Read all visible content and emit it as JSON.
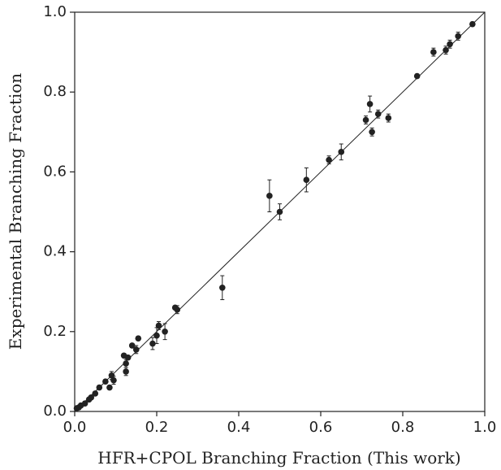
{
  "chart_data": {
    "type": "scatter",
    "xlabel": "HFR+CPOL Branching Fraction (This work)",
    "ylabel": "Experimental Branching Fraction",
    "x": [
      0.97,
      0.935,
      0.915,
      0.905,
      0.875,
      0.835,
      0.765,
      0.74,
      0.72,
      0.725,
      0.71,
      0.65,
      0.62,
      0.565,
      0.5,
      0.475,
      0.36,
      0.25,
      0.245,
      0.22,
      0.205,
      0.2,
      0.19,
      0.155,
      0.15,
      0.14,
      0.13,
      0.12,
      0.125,
      0.125,
      0.09,
      0.095,
      0.085,
      0.075,
      0.06,
      0.05,
      0.04,
      0.035,
      0.025,
      0.015,
      0.01,
      0.005
    ],
    "values": [
      0.97,
      0.94,
      0.92,
      0.905,
      0.9,
      0.84,
      0.735,
      0.745,
      0.77,
      0.7,
      0.73,
      0.65,
      0.63,
      0.58,
      0.5,
      0.54,
      0.31,
      0.255,
      0.26,
      0.2,
      0.215,
      0.19,
      0.17,
      0.183,
      0.155,
      0.165,
      0.135,
      0.14,
      0.12,
      0.1,
      0.09,
      0.078,
      0.06,
      0.075,
      0.06,
      0.045,
      0.035,
      0.03,
      0.02,
      0.015,
      0.01,
      0.008
    ],
    "errors": [
      0.005,
      0.01,
      0.01,
      0.01,
      0.01,
      0.005,
      0.01,
      0.01,
      0.02,
      0.01,
      0.01,
      0.02,
      0.01,
      0.03,
      0.02,
      0.04,
      0.03,
      0.01,
      0.005,
      0.02,
      0.01,
      0.02,
      0.015,
      0.005,
      0.01,
      0.005,
      0.005,
      0.005,
      0.01,
      0.01,
      0.01,
      0.01,
      0.005,
      0.005,
      0.005,
      0.005,
      0.005,
      0.005,
      0.005,
      0.005,
      0.005,
      0.005
    ],
    "color": "#222222",
    "identity_line": true,
    "xlim": [
      0,
      1
    ],
    "ylim": [
      0,
      1
    ],
    "xticks": [
      {
        "value": 0,
        "label": "0.0"
      },
      0.2,
      0.4,
      0.6,
      0.8,
      {
        "value": 1,
        "label": "1.0"
      }
    ],
    "yticks": [
      {
        "value": 0,
        "label": "0.0"
      },
      0.2,
      0.4,
      0.6,
      0.8,
      {
        "value": 1,
        "label": "1.0"
      }
    ]
  }
}
